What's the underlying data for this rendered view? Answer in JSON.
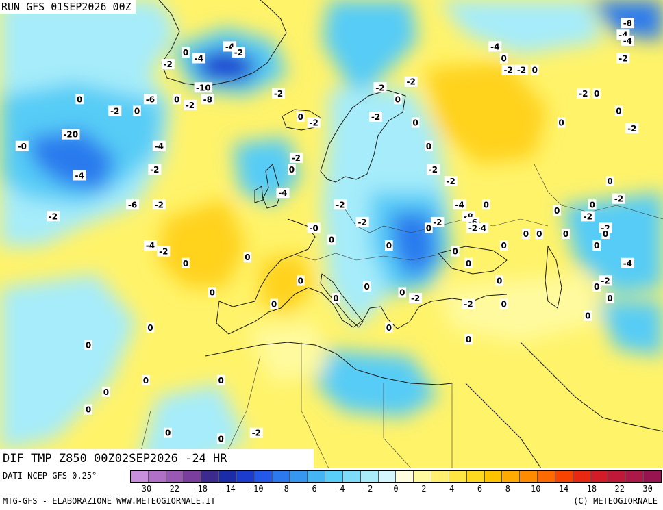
{
  "header": {
    "run": "RUN GFS 01SEP2026 00Z"
  },
  "title": "DIF TMP Z850 00Z02SEP2026 -24 HR",
  "footer": {
    "dati": "DATI NCEP GFS 0.25°",
    "credit_left": "MTG-GFS - ELABORAZIONE WWW.METEOGIORNALE.IT",
    "credit_right": "(C) METEOGIORNALE"
  },
  "colorbar": {
    "colors": [
      "#c890dc",
      "#b070c8",
      "#9858b4",
      "#7a3e9e",
      "#3c2a8c",
      "#1a2ca8",
      "#1c3cd0",
      "#2458e8",
      "#2c78ee",
      "#3696f0",
      "#44b4f4",
      "#58cef8",
      "#7edcf8",
      "#a8ecfa",
      "#d4f6fc",
      "#fffde0",
      "#fff9a0",
      "#fff070",
      "#ffe640",
      "#ffd820",
      "#ffc400",
      "#ffaa00",
      "#ff8c00",
      "#ff6a00",
      "#f84400",
      "#e82810",
      "#d41c28",
      "#c01838",
      "#ac1848",
      "#981450"
    ],
    "ticks": [
      "-30",
      "-22",
      "-18",
      "-14",
      "-10",
      "-8",
      "-6",
      "-4",
      "-2",
      "0",
      "2",
      "4",
      "6",
      "8",
      "10",
      "14",
      "18",
      "22",
      "30"
    ]
  },
  "map": {
    "palette": {
      "cold_light": "#a6ecfa",
      "cold_mid": "#56ccf6",
      "cold_deep": "#2a7aee",
      "cold_core": "#1e3ed0",
      "neutral": "#d6f6fc",
      "warm_light": "#fffa9e",
      "warm_mid": "#fff260",
      "warm_deep": "#ffd21e",
      "warm_core": "#ffb808"
    },
    "labels": [
      {
        "text": "0",
        "lon": -38,
        "lat": 73
      },
      {
        "text": "-2",
        "lon": -42,
        "lat": 71
      },
      {
        "text": "-4",
        "lon": -35,
        "lat": 72
      },
      {
        "text": "-4",
        "lon": -28,
        "lat": 74
      },
      {
        "text": "-2",
        "lon": -26,
        "lat": 73
      },
      {
        "text": "-10",
        "lon": -34,
        "lat": 67
      },
      {
        "text": "-6",
        "lon": -46,
        "lat": 65
      },
      {
        "text": "0",
        "lon": -40,
        "lat": 65
      },
      {
        "text": "-2",
        "lon": -37,
        "lat": 64
      },
      {
        "text": "-8",
        "lon": -33,
        "lat": 65
      },
      {
        "text": "0",
        "lon": -62,
        "lat": 65
      },
      {
        "text": "-2",
        "lon": -54,
        "lat": 63
      },
      {
        "text": "0",
        "lon": -49,
        "lat": 63
      },
      {
        "text": "-20",
        "lon": -64,
        "lat": 59
      },
      {
        "text": "-0",
        "lon": -75,
        "lat": 57
      },
      {
        "text": "-4",
        "lon": -44,
        "lat": 57
      },
      {
        "text": "-2",
        "lon": -45,
        "lat": 53
      },
      {
        "text": "-4",
        "lon": -62,
        "lat": 52
      },
      {
        "text": "-6",
        "lon": -50,
        "lat": 47
      },
      {
        "text": "-2",
        "lon": -44,
        "lat": 47
      },
      {
        "text": "-2",
        "lon": -68,
        "lat": 45
      },
      {
        "text": "-4",
        "lon": -46,
        "lat": 40
      },
      {
        "text": "-2",
        "lon": -43,
        "lat": 39
      },
      {
        "text": "0",
        "lon": -38,
        "lat": 37
      },
      {
        "text": "0",
        "lon": -24,
        "lat": 38
      },
      {
        "text": "0",
        "lon": -32,
        "lat": 32
      },
      {
        "text": "0",
        "lon": -46,
        "lat": 26
      },
      {
        "text": "0",
        "lon": -60,
        "lat": 23
      },
      {
        "text": "0",
        "lon": -47,
        "lat": 17
      },
      {
        "text": "0",
        "lon": -30,
        "lat": 17
      },
      {
        "text": "0",
        "lon": -60,
        "lat": 12
      },
      {
        "text": "0",
        "lon": -42,
        "lat": 8
      },
      {
        "text": "0",
        "lon": -30,
        "lat": 7
      },
      {
        "text": "-2",
        "lon": -22,
        "lat": 8
      },
      {
        "text": "0",
        "lon": -20,
        "lat": 4
      },
      {
        "text": "0",
        "lon": -56,
        "lat": 15
      },
      {
        "text": "-2",
        "lon": -17,
        "lat": 66
      },
      {
        "text": "0",
        "lon": -12,
        "lat": 62
      },
      {
        "text": "-2",
        "lon": -9,
        "lat": 61
      },
      {
        "text": "-2",
        "lon": -13,
        "lat": 55
      },
      {
        "text": "0",
        "lon": -14,
        "lat": 53
      },
      {
        "text": "-4",
        "lon": -16,
        "lat": 49
      },
      {
        "text": "-2",
        "lon": -3,
        "lat": 47
      },
      {
        "text": "-0",
        "lon": -9,
        "lat": 43
      },
      {
        "text": "0",
        "lon": -5,
        "lat": 41
      },
      {
        "text": "-2",
        "lon": 2,
        "lat": 44
      },
      {
        "text": "-2",
        "lon": 6,
        "lat": 67
      },
      {
        "text": "-2",
        "lon": 13,
        "lat": 68
      },
      {
        "text": "0",
        "lon": 10,
        "lat": 65
      },
      {
        "text": "-2",
        "lon": 5,
        "lat": 62
      },
      {
        "text": "0",
        "lon": 14,
        "lat": 61
      },
      {
        "text": "0",
        "lon": 17,
        "lat": 57
      },
      {
        "text": "-2",
        "lon": 18,
        "lat": 53
      },
      {
        "text": "-2",
        "lon": 22,
        "lat": 51
      },
      {
        "text": "-4",
        "lon": 24,
        "lat": 47
      },
      {
        "text": "0",
        "lon": 30,
        "lat": 47
      },
      {
        "text": "-8",
        "lon": 26,
        "lat": 45
      },
      {
        "text": "-6",
        "lon": 27,
        "lat": 44
      },
      {
        "text": "-4",
        "lon": 29,
        "lat": 43
      },
      {
        "text": "-2",
        "lon": 27,
        "lat": 43
      },
      {
        "text": "-2",
        "lon": 19,
        "lat": 44
      },
      {
        "text": "0",
        "lon": 17,
        "lat": 43
      },
      {
        "text": "0",
        "lon": 8,
        "lat": 40
      },
      {
        "text": "0",
        "lon": 23,
        "lat": 39
      },
      {
        "text": "0",
        "lon": 26,
        "lat": 37
      },
      {
        "text": "0",
        "lon": 33,
        "lat": 34
      },
      {
        "text": "-2",
        "lon": 26,
        "lat": 30
      },
      {
        "text": "-2",
        "lon": 14,
        "lat": 31
      },
      {
        "text": "0",
        "lon": 3,
        "lat": 33
      },
      {
        "text": "0",
        "lon": 11,
        "lat": 32
      },
      {
        "text": "0",
        "lon": 34,
        "lat": 30
      },
      {
        "text": "0",
        "lon": 26,
        "lat": 24
      },
      {
        "text": "0",
        "lon": 8,
        "lat": 26
      },
      {
        "text": "0",
        "lon": -4,
        "lat": 31
      },
      {
        "text": "0",
        "lon": -12,
        "lat": 34
      },
      {
        "text": "0",
        "lon": -18,
        "lat": 30
      },
      {
        "text": "-4",
        "lon": 32,
        "lat": 74
      },
      {
        "text": "0",
        "lon": 34,
        "lat": 72
      },
      {
        "text": "-2",
        "lon": 35,
        "lat": 70
      },
      {
        "text": "-2",
        "lon": 38,
        "lat": 70
      },
      {
        "text": "0",
        "lon": 41,
        "lat": 70
      },
      {
        "text": "-2",
        "lon": 52,
        "lat": 66
      },
      {
        "text": "0",
        "lon": 55,
        "lat": 66
      },
      {
        "text": "0",
        "lon": 47,
        "lat": 61
      },
      {
        "text": "0",
        "lon": 60,
        "lat": 63
      },
      {
        "text": "-2",
        "lon": 63,
        "lat": 60
      },
      {
        "text": "0",
        "lon": 58,
        "lat": 51
      },
      {
        "text": "-2",
        "lon": 60,
        "lat": 48
      },
      {
        "text": "0",
        "lon": 54,
        "lat": 47
      },
      {
        "text": "0",
        "lon": 46,
        "lat": 46
      },
      {
        "text": "-2",
        "lon": 53,
        "lat": 45
      },
      {
        "text": "0",
        "lon": 48,
        "lat": 42
      },
      {
        "text": "-2",
        "lon": 57,
        "lat": 43
      },
      {
        "text": "0",
        "lon": 42,
        "lat": 42
      },
      {
        "text": "0",
        "lon": 55,
        "lat": 40
      },
      {
        "text": "0",
        "lon": 57,
        "lat": 42
      },
      {
        "text": "0",
        "lon": 39,
        "lat": 42
      },
      {
        "text": "0",
        "lon": 34,
        "lat": 40
      },
      {
        "text": "-4",
        "lon": 62,
        "lat": 37
      },
      {
        "text": "-2",
        "lon": 57,
        "lat": 34
      },
      {
        "text": "0",
        "lon": 55,
        "lat": 33
      },
      {
        "text": "0",
        "lon": 58,
        "lat": 31
      },
      {
        "text": "0",
        "lon": 53,
        "lat": 28
      },
      {
        "text": "-8",
        "lon": 62,
        "lat": 78
      },
      {
        "text": "-4",
        "lon": 61,
        "lat": 76
      },
      {
        "text": "-4",
        "lon": 62,
        "lat": 75
      },
      {
        "text": "-2",
        "lon": 61,
        "lat": 72
      }
    ]
  }
}
